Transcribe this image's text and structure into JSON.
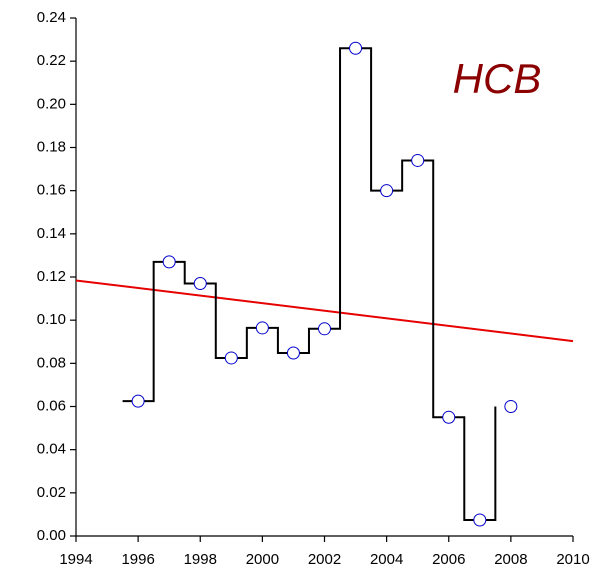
{
  "chart_data": {
    "type": "step-scatter",
    "title": "HCB",
    "title_color": "#8b0000",
    "x": [
      1996,
      1997,
      1998,
      1999,
      2000,
      2001,
      2002,
      2003,
      2004,
      2005,
      2006,
      2007,
      2008
    ],
    "series": [
      {
        "values": [
          0.0625,
          0.127,
          0.117,
          0.0825,
          0.0964,
          0.0848,
          0.096,
          0.226,
          0.16,
          0.174,
          0.055,
          0.0074,
          0.06
        ],
        "color": "#0000cc",
        "line_color": "#000000"
      }
    ],
    "trend": {
      "x": [
        1994,
        2010
      ],
      "values": [
        0.1184,
        0.0903
      ],
      "color": "#e60000"
    },
    "xlim": [
      1994,
      2010
    ],
    "xticks": [
      1994,
      1996,
      1998,
      2000,
      2002,
      2004,
      2006,
      2008,
      2010
    ],
    "ylim": [
      0,
      0.24
    ],
    "yticks": [
      {
        "value": 0,
        "label": "0.00"
      },
      {
        "value": 0.02,
        "label": "0.02"
      },
      {
        "value": 0.04,
        "label": "0.04"
      },
      {
        "value": 0.06,
        "label": "0.06"
      },
      {
        "value": 0.08,
        "label": "0.08"
      },
      {
        "value": 0.1,
        "label": "0.10"
      },
      {
        "value": 0.12,
        "label": "0.12"
      },
      {
        "value": 0.14,
        "label": "0.14"
      },
      {
        "value": 0.16,
        "label": "0.16"
      },
      {
        "value": 0.18,
        "label": "0.18"
      },
      {
        "value": 0.2,
        "label": "0.20"
      },
      {
        "value": 0.22,
        "label": "0.22"
      },
      {
        "value": 0.24,
        "label": "0.24"
      }
    ],
    "grid": false
  }
}
